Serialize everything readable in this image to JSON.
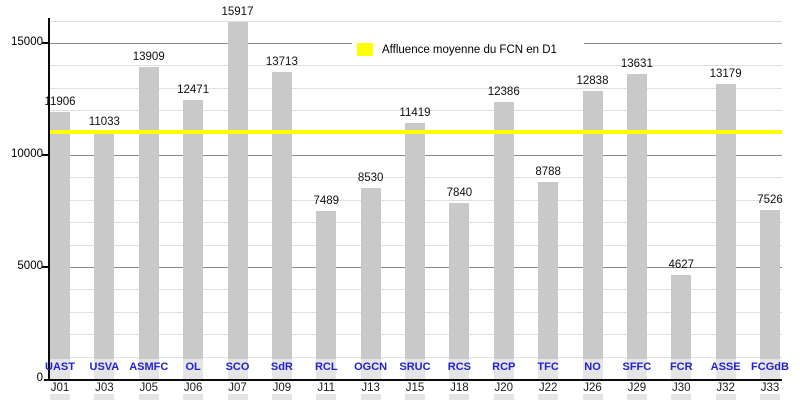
{
  "chart_data": {
    "type": "bar",
    "title": "",
    "categories": [
      "J01",
      "J03",
      "J05",
      "J06",
      "J07",
      "J09",
      "J11",
      "J13",
      "J15",
      "J18",
      "J20",
      "J22",
      "J26",
      "J29",
      "J30",
      "J32",
      "J33"
    ],
    "teams": [
      "UAST",
      "USVA",
      "ASMFC",
      "OL",
      "SCO",
      "SdR",
      "RCL",
      "OGCN",
      "SRUC",
      "RCS",
      "RCP",
      "TFC",
      "NO",
      "SFFC",
      "FCR",
      "ASSE",
      "FCGdB"
    ],
    "values": [
      11906,
      11033,
      13909,
      12471,
      15917,
      13713,
      7489,
      8530,
      11419,
      7840,
      12386,
      8788,
      12838,
      13631,
      4627,
      13179,
      7526
    ],
    "value_labels": [
      "11906",
      "11033",
      "13909",
      "12471",
      "15917",
      "13713",
      "7489",
      "8530",
      "11419",
      "7840",
      "12386",
      "8788",
      "12838",
      "13631",
      "4627",
      "13179",
      "7526"
    ],
    "average_line": {
      "value": 11012,
      "color": "#ffff00"
    },
    "legend": {
      "label": "Affluence moyenne du FCN en D1",
      "swatch_color": "#ffff00",
      "position": "top-center"
    },
    "ylim": [
      0,
      16000
    ],
    "yticks": [
      0,
      5000,
      10000,
      15000
    ],
    "ytick_labels": [
      "0",
      "5000",
      "10000",
      "15000"
    ],
    "minor_grid_step": 1000,
    "grid": "on",
    "xlabel": "",
    "ylabel": "",
    "colors": {
      "bar": "#c9c9c9",
      "bar_stub": "#e4e4e4",
      "major_gridline": "#8c8c8c",
      "minor_gridline": "#dfdfdf",
      "team_label": "#2323cb",
      "axis": "#0a0a0a"
    }
  }
}
